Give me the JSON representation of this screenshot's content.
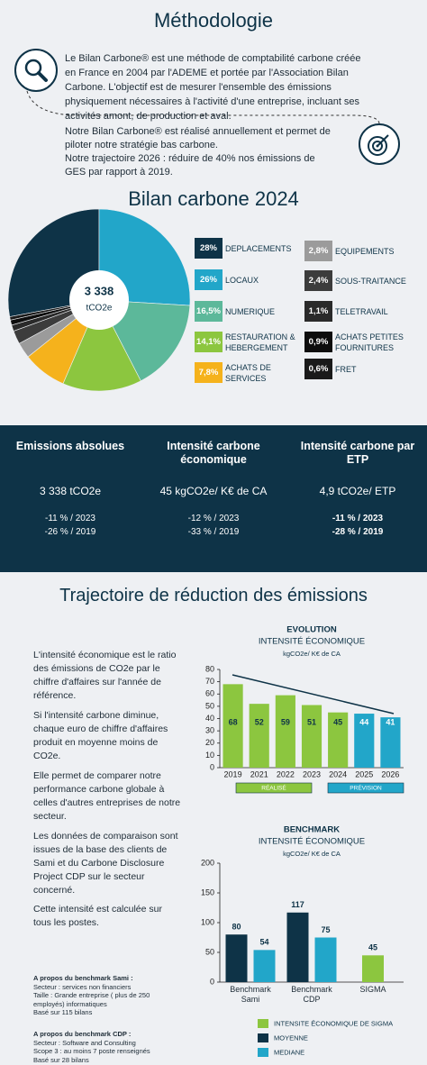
{
  "methodology": {
    "title": "Méthodologie",
    "paragraphs": [
      "Le Bilan Carbone® est une méthode de comptabilité carbone créée en France en 2004 par l'ADEME et portée par l'Association Bilan Carbone. L'objectif  est de mesurer l'ensemble des émissions physiquement nécessaires à l'activité d'une entreprise, incluant ses activités amont, de production et aval.",
      "Notre Bilan Carbone® est réalisé annuellement et permet de piloter notre stratégie bas carbone.",
      "Notre trajectoire 2026 : réduire de 40% nos émissions de GES par rapport à 2019."
    ]
  },
  "chart_data": [
    {
      "type": "pie",
      "title": "Bilan carbone 2024",
      "center_value": "3 338",
      "center_unit": "tCO2e",
      "categories": [
        "DEPLACEMENTS",
        "LOCAUX",
        "NUMERIQUE",
        "RESTAURATION & HEBERGEMENT",
        "ACHATS DE SERVICES",
        "EQUIPEMENTS",
        "SOUS-TRAITANCE",
        "TELETRAVAIL",
        "ACHATS PETITES FOURNITURES",
        "FRET"
      ],
      "values": [
        28,
        26,
        16.5,
        14.1,
        7.8,
        2.8,
        2.4,
        1.1,
        0.9,
        0.6
      ],
      "value_labels": [
        "28%",
        "26%",
        "16,5%",
        "14,1%",
        "7,8%",
        "2,8%",
        "2,4%",
        "1,1%",
        "0,9%",
        "0,6%"
      ],
      "colors": [
        "#0e3347",
        "#22a6c9",
        "#5cb89a",
        "#8cc63f",
        "#f5b21c",
        "#9b9b9b",
        "#3c3c3c",
        "#2a2a2a",
        "#0d0d0d",
        "#1a1a1a"
      ]
    },
    {
      "type": "bar",
      "title": "EVOLUTION",
      "subtitle": "INTENSITÉ  ÉCONOMIQUE",
      "unit_label": "kgCO2e/ K€ de CA",
      "categories": [
        "2019",
        "2021",
        "2022",
        "2023",
        "2024",
        "2025",
        "2026"
      ],
      "series": [
        {
          "name": "RÉALISÉ",
          "color": "#8cc63f",
          "values": [
            68,
            52,
            59,
            51,
            45,
            null,
            null
          ]
        },
        {
          "name": "PRÉVISION",
          "color": "#22a6c9",
          "values": [
            null,
            null,
            null,
            null,
            null,
            44,
            41
          ]
        }
      ],
      "ylim": [
        0,
        80
      ],
      "yticks": [
        0,
        10,
        20,
        30,
        40,
        50,
        60,
        70,
        80
      ],
      "grid": false
    },
    {
      "type": "grouped_bar",
      "title": "BENCHMARK",
      "subtitle": "INTENSITÉ ÉCONOMIQUE",
      "unit_label": "kgCO2e/ K€ de CA",
      "categories": [
        "Benchmark Sami",
        "Benchmark CDP",
        "SIGMA"
      ],
      "series": [
        {
          "name": "INTENSITE ÉCONOMIQUE DE SIGMA",
          "color": "#8cc63f",
          "values": [
            null,
            null,
            45
          ]
        },
        {
          "name": "MOYENNE",
          "color": "#0e3347",
          "values": [
            80,
            117,
            null
          ]
        },
        {
          "name": "MEDIANE",
          "color": "#22a6c9",
          "values": [
            54,
            75,
            null
          ]
        }
      ],
      "ylim": [
        0,
        200
      ],
      "yticks": [
        0,
        50,
        100,
        150,
        200
      ],
      "grid": false
    }
  ],
  "kpis": [
    {
      "title": "Emissions absolues",
      "value": "3 338 tCO2e",
      "changes": [
        "-11 % / 2023",
        "-26 % / 2019"
      ]
    },
    {
      "title": "Intensité carbone économique",
      "value": "45 kgCO2e/ K€ de CA",
      "changes": [
        "-12 % / 2023",
        "-33 % / 2019"
      ]
    },
    {
      "title": "Intensité carbone par ETP",
      "value": "4,9 tCO2e/ ETP",
      "changes": [
        "-11 % / 2023",
        "-28 % / 2019"
      ]
    }
  ],
  "trajectory": {
    "title": "Trajectoire de réduction des émissions",
    "paragraphs": [
      "L'intensité économique est le ratio des émissions de CO2e par le chiffre d'affaires sur l'année de référence.",
      "Si l'intensité carbone diminue, chaque euro de chiffre d'affaires produit en moyenne moins de CO2e.",
      "Elle permet de comparer notre performance carbone globale à celles d'autres entreprises de notre secteur.",
      "Les données de comparaison sont issues de la base des clients de Sami et du Carbone Disclosure Project CDP sur le secteur concerné.",
      "Cette intensité est calculée sur tous les postes."
    ],
    "notes": [
      {
        "title": "A propos du benchmark Sami :",
        "lines": [
          "Secteur :  services non financiers",
          "Taille : Grande entreprise ( plus de 250 employés) informatiques",
          "Basé sur 115 bilans"
        ]
      },
      {
        "title": "A propos du benchmark CDP :",
        "lines": [
          "Secteur : Software and Consulting",
          "Scope 3 : au moins 7 poste renseignés",
          "Basé sur 28 bilans"
        ]
      }
    ]
  }
}
